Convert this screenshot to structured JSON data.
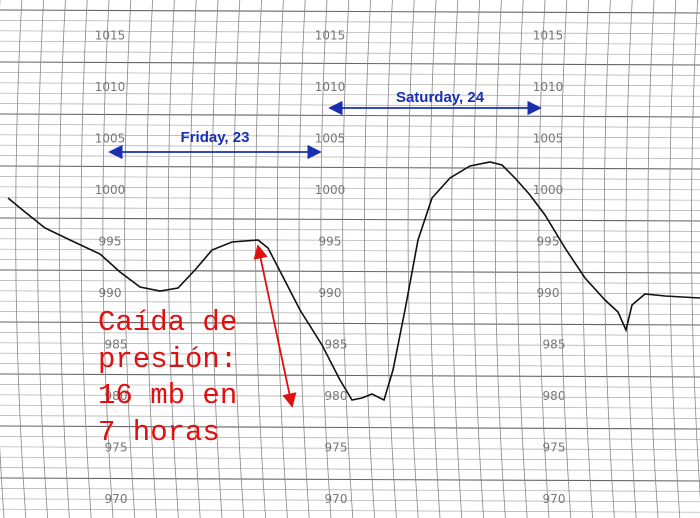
{
  "scale_labels": [
    "1015",
    "1010",
    "1005",
    "1000",
    "995",
    "990",
    "985",
    "980",
    "975",
    "970"
  ],
  "day_labels": {
    "friday": "Friday, 23",
    "saturday": "Saturday, 24"
  },
  "pressure_drop_note": [
    "Caída de",
    "presión:",
    "16 mb en",
    "7 horas"
  ]
}
